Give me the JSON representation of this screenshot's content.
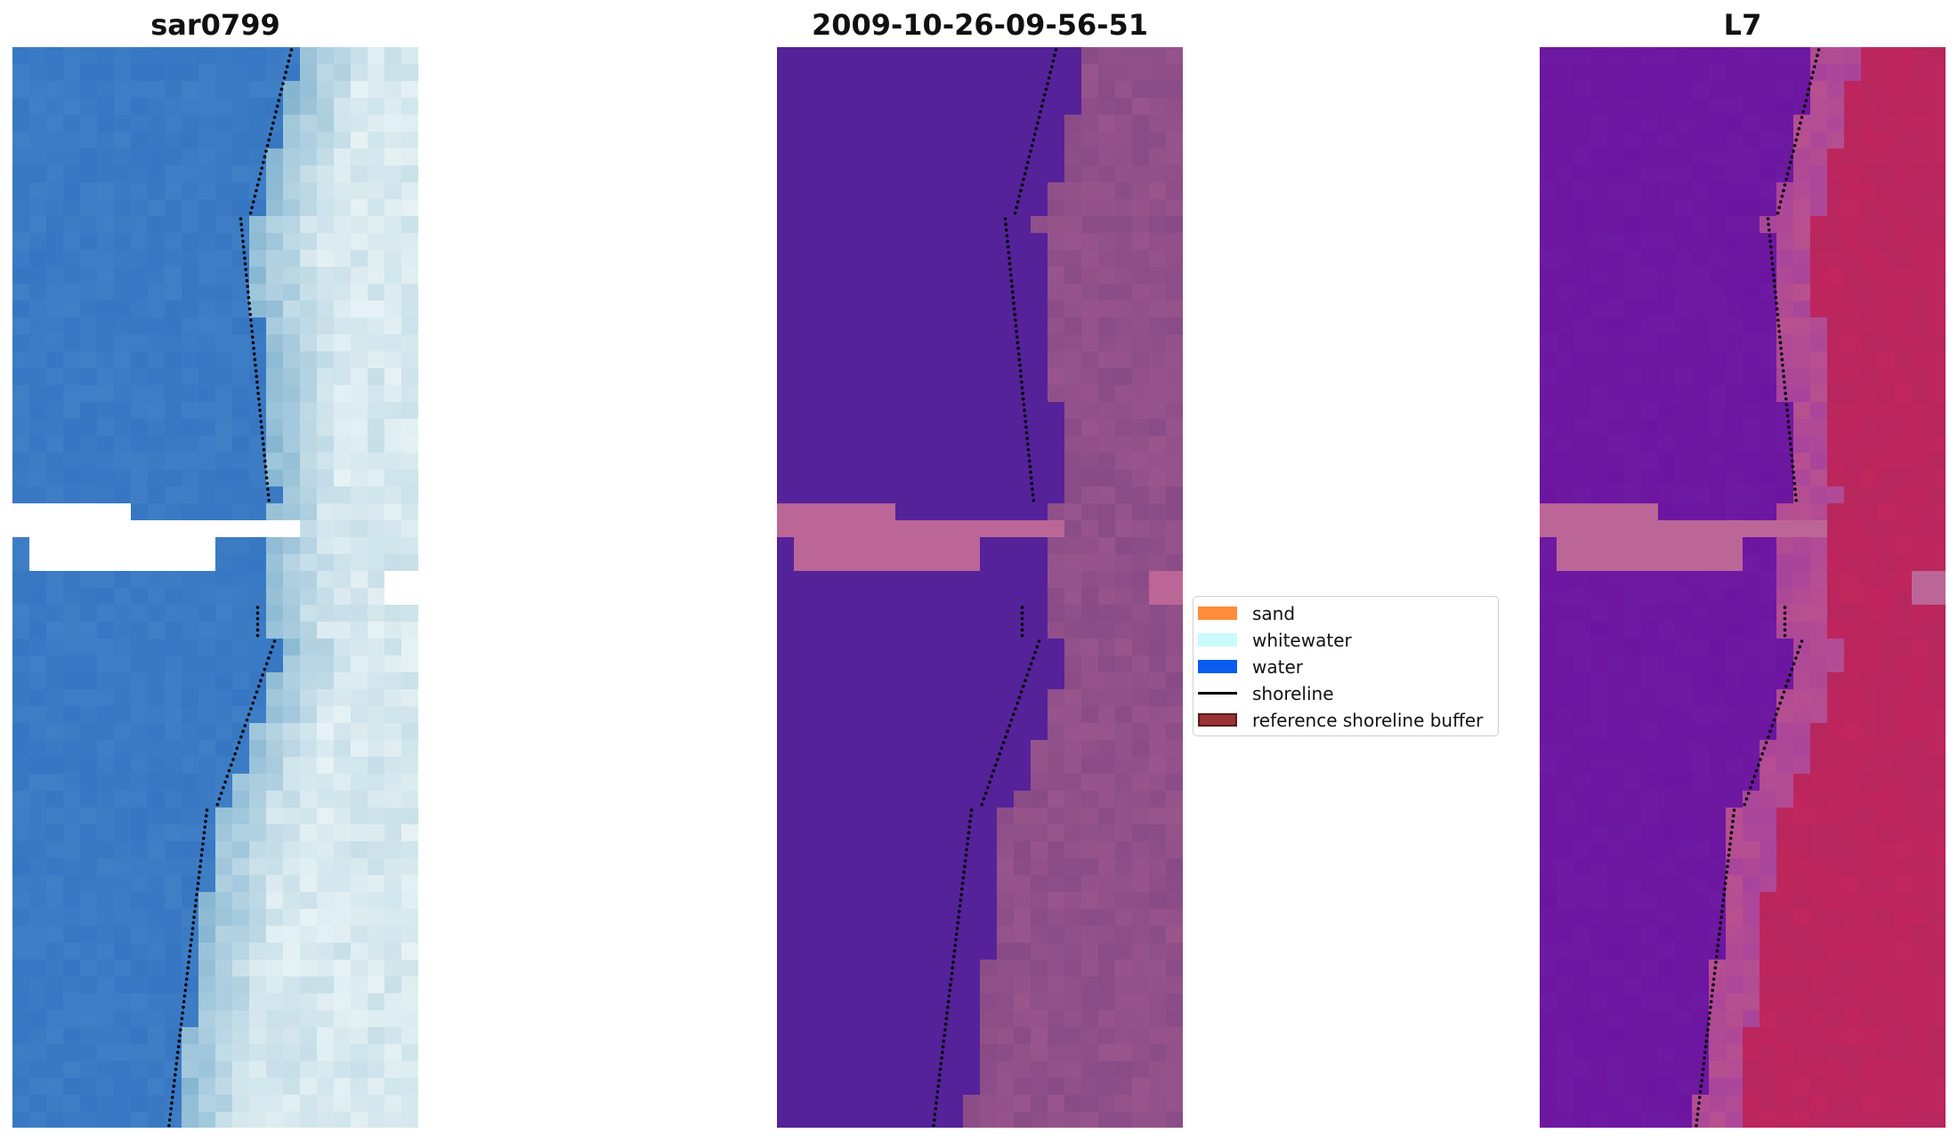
{
  "panels": [
    {
      "id": "rgb",
      "title": "sar0799"
    },
    {
      "id": "classified",
      "title": "2009-10-26-09-56-51"
    },
    {
      "id": "mndwi",
      "title": "L7"
    }
  ],
  "legend": {
    "items": [
      {
        "label": "sand",
        "color": "#ff8c3a",
        "kind": "patch"
      },
      {
        "label": "whitewater",
        "color": "#c9fbfb",
        "kind": "patch"
      },
      {
        "label": "water",
        "color": "#0a5cf0",
        "kind": "patch"
      },
      {
        "label": "shoreline",
        "color": "#000000",
        "kind": "line"
      },
      {
        "label": "reference shoreline buffer",
        "color": "#9a3236",
        "kind": "patch"
      }
    ]
  },
  "colors": {
    "water_rgb": "#3f7fc6",
    "water_class": "#552299",
    "sand_class": "#884b86",
    "buffer_overlay": "#bb6697",
    "water_index": "#6f1aa2",
    "land_index": "#c0255c"
  }
}
